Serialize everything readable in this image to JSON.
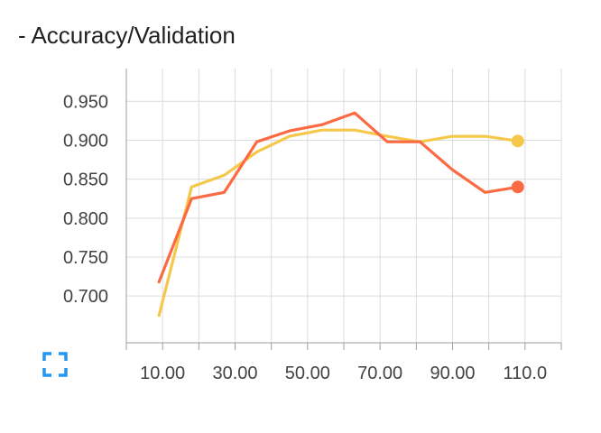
{
  "chart_data": {
    "type": "line",
    "title": "- Accuracy/Validation",
    "xlabel": "",
    "ylabel": "",
    "xlim": [
      0,
      120
    ],
    "ylim": [
      0.64,
      0.992
    ],
    "x_ticks": [
      10,
      30,
      50,
      70,
      90,
      110
    ],
    "x_tick_labels": [
      "10.00",
      "30.00",
      "50.00",
      "70.00",
      "90.00",
      "110.0"
    ],
    "x_minor_ticks": [
      0,
      20,
      40,
      60,
      80,
      100,
      120
    ],
    "y_ticks": [
      0.7,
      0.75,
      0.8,
      0.85,
      0.9,
      0.95
    ],
    "y_tick_labels": [
      "0.700",
      "0.750",
      "0.800",
      "0.850",
      "0.900",
      "0.950"
    ],
    "grid": true,
    "legend": "none",
    "series": [
      {
        "color": "#f5c84c",
        "x": [
          9,
          18,
          27,
          36,
          45,
          54,
          63,
          72,
          81,
          90,
          99,
          108
        ],
        "y": [
          0.675,
          0.84,
          0.855,
          0.885,
          0.905,
          0.913,
          0.913,
          0.905,
          0.898,
          0.905,
          0.905,
          0.899
        ]
      },
      {
        "color": "#fb6a42",
        "x": [
          9,
          18,
          27,
          36,
          45,
          54,
          63,
          72,
          81,
          90,
          99,
          108
        ],
        "y": [
          0.718,
          0.825,
          0.833,
          0.898,
          0.912,
          0.92,
          0.935,
          0.898,
          0.898,
          0.862,
          0.833,
          0.84
        ]
      }
    ]
  },
  "ui": {
    "expand_icon": "fullscreen-expand-icon",
    "accent_color": "#2196f3"
  }
}
